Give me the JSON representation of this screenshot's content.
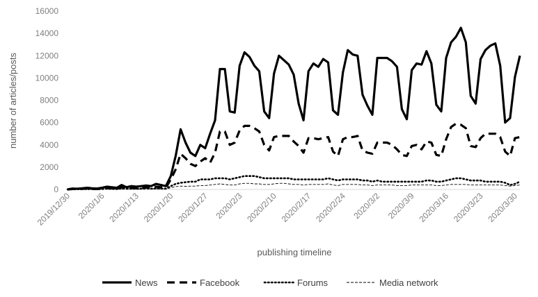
{
  "chart_data": {
    "type": "line",
    "xlabel": "publishing timeline",
    "ylabel": "number of articles/posts",
    "ylim": [
      0,
      16000
    ],
    "y_ticks": [
      "0",
      "2000",
      "4000",
      "6000",
      "8000",
      "10000",
      "12000",
      "14000",
      "16000"
    ],
    "x_tick_labels": [
      "2019/12/30",
      "2020/1/6",
      "2020/1/13",
      "2020/1/20",
      "2020/1/27",
      "2020/2/3",
      "2020/2/10",
      "2020/2/17",
      "2020/2/24",
      "2020/3/2",
      "2020/3/9",
      "2020/3/16",
      "2020/3/23",
      "2020/3/30"
    ],
    "x_tick_day_index": [
      0,
      7,
      14,
      21,
      28,
      35,
      42,
      49,
      56,
      63,
      70,
      77,
      84,
      91
    ],
    "x_start": "2019/12/30",
    "x_end": "2020/3/31",
    "grid": false,
    "legend_position": "bottom",
    "series": [
      {
        "name": "News",
        "style": "solid-thick",
        "color": "#000000",
        "values": [
          0,
          80,
          60,
          100,
          150,
          100,
          80,
          150,
          250,
          200,
          150,
          400,
          200,
          300,
          250,
          300,
          350,
          300,
          500,
          400,
          300,
          1200,
          3000,
          5400,
          4200,
          3300,
          3000,
          4000,
          3700,
          5000,
          6200,
          10800,
          10800,
          7000,
          6900,
          11100,
          12300,
          11900,
          11100,
          10600,
          7000,
          6400,
          10400,
          12000,
          11600,
          11200,
          10300,
          7700,
          6200,
          10600,
          11300,
          11000,
          11700,
          11400,
          7100,
          6700,
          10500,
          12500,
          12100,
          12000,
          8500,
          7500,
          6700,
          11800,
          11800,
          11800,
          11500,
          11000,
          7200,
          6300,
          10700,
          11300,
          11200,
          12400,
          11300,
          7600,
          7000,
          11800,
          13200,
          13700,
          14500,
          13200,
          8400,
          7700,
          11700,
          12500,
          12900,
          13100,
          11100,
          6000,
          6400,
          10100,
          12000
        ]
      },
      {
        "name": "Facebook",
        "style": "dashed",
        "color": "#000000",
        "values": [
          0,
          40,
          30,
          50,
          80,
          50,
          40,
          80,
          120,
          100,
          80,
          200,
          100,
          150,
          120,
          150,
          180,
          150,
          250,
          200,
          150,
          900,
          1800,
          3200,
          2800,
          2300,
          2100,
          2500,
          2800,
          2400,
          3300,
          5200,
          5200,
          4000,
          4200,
          5300,
          5700,
          5700,
          5500,
          5200,
          4000,
          3500,
          4700,
          4800,
          4800,
          4800,
          4300,
          3900,
          3300,
          4600,
          4600,
          4500,
          4600,
          4700,
          3400,
          3000,
          4500,
          4700,
          4700,
          4800,
          3500,
          3300,
          3200,
          4200,
          4200,
          4200,
          4000,
          3600,
          3100,
          3000,
          3900,
          4000,
          3600,
          4300,
          4200,
          3100,
          3000,
          4500,
          5600,
          5900,
          5800,
          5500,
          3900,
          3800,
          4600,
          5000,
          5000,
          5000,
          4700,
          3400,
          3000,
          4600,
          4700
        ]
      },
      {
        "name": "Forums",
        "style": "dotted",
        "color": "#000000",
        "values": [
          0,
          20,
          20,
          30,
          40,
          30,
          20,
          40,
          60,
          50,
          40,
          80,
          60,
          70,
          60,
          70,
          80,
          70,
          90,
          80,
          70,
          300,
          500,
          600,
          650,
          700,
          700,
          900,
          900,
          900,
          1000,
          1000,
          1000,
          900,
          1000,
          1100,
          1200,
          1200,
          1200,
          1100,
          1000,
          1000,
          1000,
          1000,
          1000,
          1000,
          900,
          900,
          900,
          900,
          900,
          900,
          900,
          1000,
          900,
          800,
          900,
          900,
          900,
          900,
          800,
          800,
          700,
          800,
          700,
          700,
          700,
          700,
          700,
          700,
          700,
          700,
          700,
          800,
          800,
          700,
          700,
          800,
          900,
          1000,
          1000,
          900,
          800,
          800,
          800,
          700,
          700,
          700,
          700,
          600,
          400,
          500,
          700
        ]
      },
      {
        "name": "Media network",
        "style": "dashed-thin",
        "color": "#000000",
        "values": [
          0,
          10,
          10,
          10,
          20,
          10,
          10,
          20,
          30,
          20,
          20,
          40,
          30,
          40,
          30,
          40,
          50,
          40,
          60,
          50,
          40,
          150,
          250,
          300,
          280,
          300,
          300,
          350,
          350,
          400,
          450,
          500,
          450,
          400,
          400,
          500,
          550,
          550,
          500,
          500,
          450,
          450,
          500,
          550,
          550,
          500,
          450,
          450,
          400,
          450,
          450,
          450,
          450,
          500,
          400,
          350,
          450,
          450,
          450,
          450,
          400,
          400,
          350,
          400,
          400,
          400,
          400,
          350,
          350,
          350,
          400,
          400,
          400,
          400,
          400,
          350,
          350,
          400,
          450,
          450,
          450,
          450,
          400,
          400,
          400,
          400,
          400,
          400,
          400,
          350,
          300,
          350,
          400
        ]
      }
    ]
  }
}
